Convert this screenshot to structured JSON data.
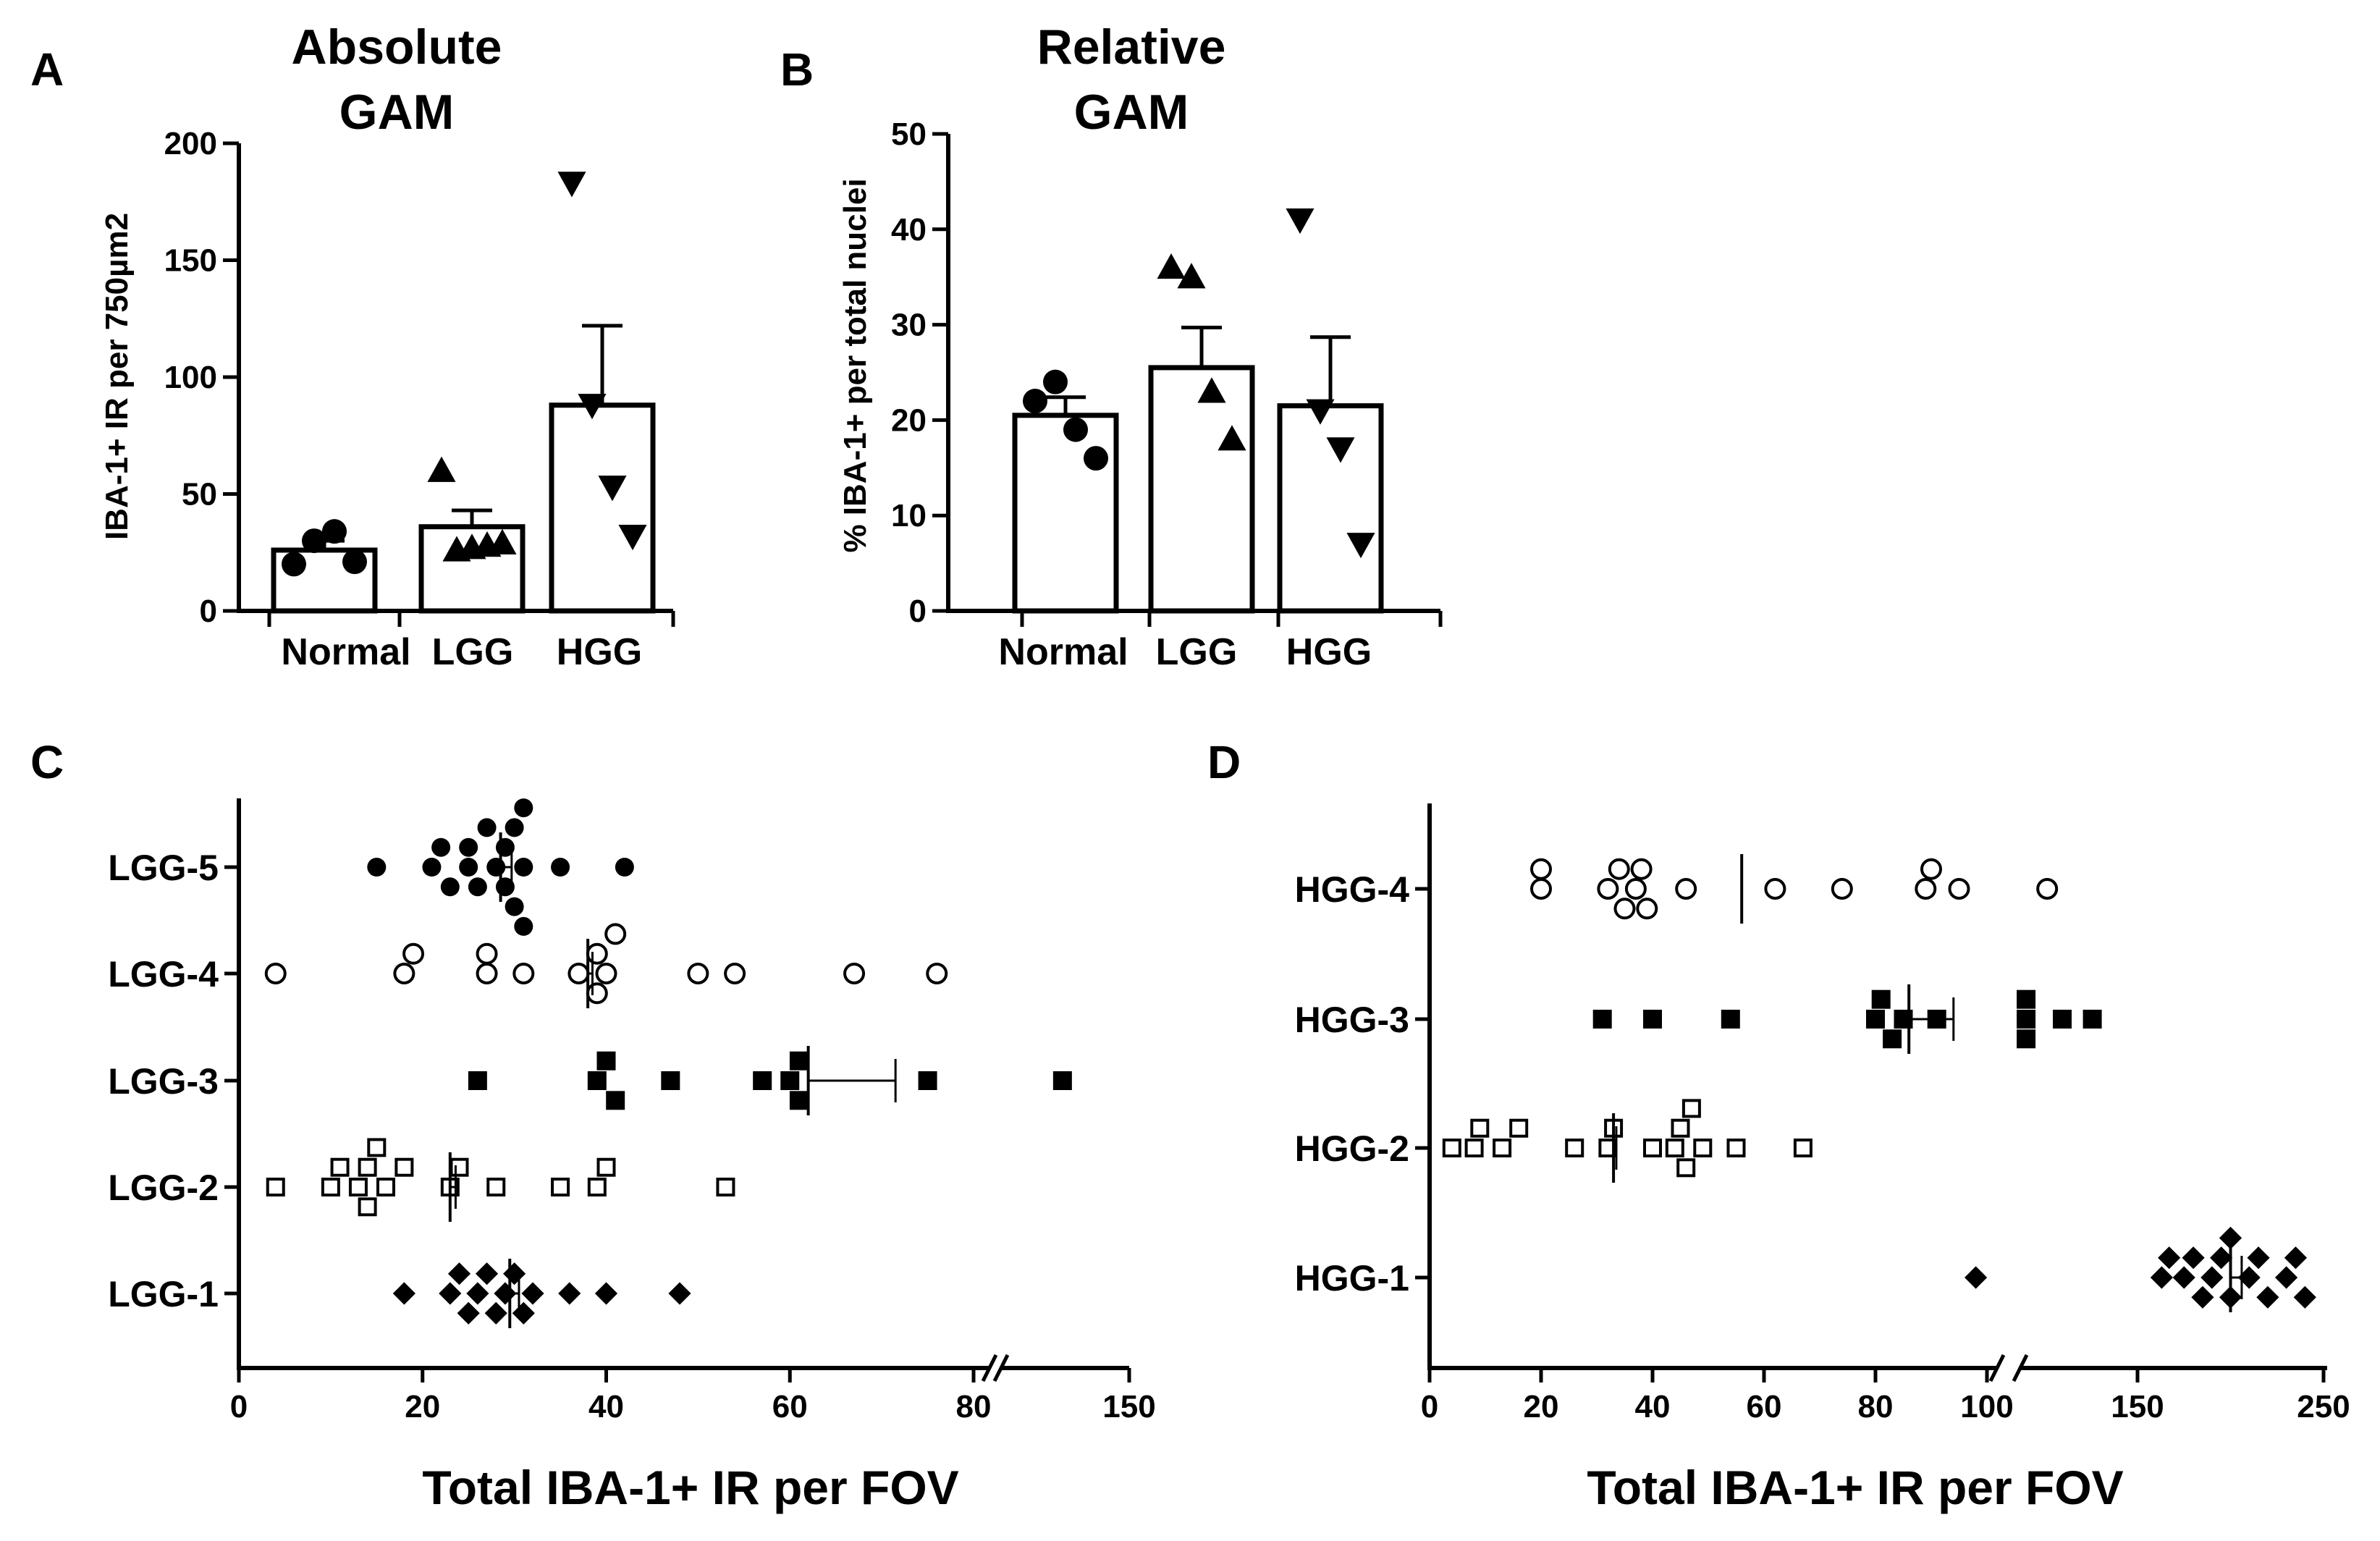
{
  "chart_data": [
    {
      "panel": "A",
      "type": "bar",
      "title": [
        "Absolute",
        "GAM"
      ],
      "ylabel": "IBA-1+ IR per 750µm2",
      "ylim": [
        0,
        200
      ],
      "yticks": [
        0,
        50,
        100,
        150,
        200
      ],
      "categories": [
        "Normal",
        "LGG",
        "HGG"
      ],
      "bars": [
        {
          "category": "Normal",
          "mean": 26,
          "sem": 4,
          "marker": "circle",
          "points": [
            20,
            30,
            34,
            21
          ]
        },
        {
          "category": "LGG",
          "mean": 36,
          "sem": 7,
          "marker": "triangle-up",
          "points": [
            60,
            26,
            27,
            28,
            29
          ]
        },
        {
          "category": "HGG",
          "mean": 88,
          "sem": 34,
          "marker": "triangle-down",
          "points": [
            183,
            88,
            53,
            32
          ]
        }
      ]
    },
    {
      "panel": "B",
      "type": "bar",
      "title": [
        "Relative",
        "GAM"
      ],
      "ylabel": "% IBA-1+ per total nuclei",
      "ylim": [
        0,
        50
      ],
      "yticks": [
        0,
        10,
        20,
        30,
        40,
        50
      ],
      "categories": [
        "Normal",
        "LGG",
        "HGG"
      ],
      "bars": [
        {
          "category": "Normal",
          "mean": 20.5,
          "sem": 1.9,
          "marker": "circle",
          "points": [
            22,
            24,
            19,
            16
          ]
        },
        {
          "category": "LGG",
          "mean": 25.5,
          "sem": 4.2,
          "marker": "triangle-up",
          "points": [
            36,
            35,
            23,
            18
          ]
        },
        {
          "category": "HGG",
          "mean": 21.5,
          "sem": 7.2,
          "marker": "triangle-down",
          "points": [
            41,
            21,
            17,
            7
          ]
        }
      ]
    },
    {
      "panel": "C",
      "type": "scatter",
      "xlabel": "Total IBA-1+ IR per FOV",
      "x_axis_break": true,
      "xticks": [
        0,
        20,
        40,
        60,
        80,
        150
      ],
      "categories": [
        "LGG-5",
        "LGG-4",
        "LGG-3",
        "LGG-2",
        "LGG-1"
      ],
      "series": [
        {
          "name": "LGG-5",
          "marker": "filled-circle",
          "mean": 28.5,
          "sem": 1.2,
          "points": [
            15,
            21,
            22,
            23,
            25,
            25,
            26,
            27,
            28,
            29,
            29,
            30,
            30,
            31,
            31,
            31,
            35,
            42
          ]
        },
        {
          "name": "LGG-4",
          "marker": "open-circle",
          "mean": 38,
          "sem": 0.5,
          "points": [
            4,
            18,
            19,
            27,
            27,
            31,
            37,
            39,
            39,
            40,
            41,
            50,
            54,
            67,
            76
          ]
        },
        {
          "name": "LGG-3",
          "marker": "filled-square",
          "mean": 62,
          "sem": 9.5,
          "points": [
            26,
            39,
            40,
            41,
            47,
            57,
            60,
            61,
            61,
            75,
            120
          ]
        },
        {
          "name": "LGG-2",
          "marker": "open-square",
          "mean": 23,
          "sem": 0.6,
          "points": [
            4,
            10,
            11,
            13,
            14,
            14,
            15,
            16,
            18,
            23,
            24,
            28,
            35,
            39,
            40,
            53
          ]
        },
        {
          "name": "LGG-1",
          "marker": "filled-diamond",
          "mean": 29.5,
          "sem": 1.0,
          "points": [
            18,
            23,
            24,
            25,
            26,
            27,
            28,
            29,
            30,
            31,
            32,
            36,
            40,
            48
          ]
        }
      ]
    },
    {
      "panel": "D",
      "type": "scatter",
      "xlabel": "Total IBA-1+ IR per FOV",
      "x_axis_break": true,
      "xticks": [
        0,
        20,
        40,
        60,
        80,
        100,
        150,
        250
      ],
      "categories": [
        "HGG-4",
        "HGG-3",
        "HGG-2",
        "HGG-1"
      ],
      "series": [
        {
          "name": "HGG-4",
          "marker": "open-circle",
          "mean": 56,
          "sem": 0,
          "points": [
            20,
            20,
            32,
            34,
            35,
            37,
            38,
            39,
            46,
            62,
            74,
            89,
            90,
            95,
            120
          ]
        },
        {
          "name": "HGG-3",
          "marker": "filled-square",
          "mean": 86,
          "sem": 8,
          "points": [
            31,
            40,
            54,
            80,
            81,
            83,
            85,
            91,
            113,
            113,
            113,
            125,
            135
          ]
        },
        {
          "name": "HGG-2",
          "marker": "open-square",
          "mean": 33,
          "sem": 0.5,
          "points": [
            4,
            8,
            9,
            13,
            16,
            26,
            32,
            33,
            40,
            44,
            45,
            46,
            47,
            49,
            55,
            67
          ]
        },
        {
          "name": "HGG-1",
          "marker": "filled-diamond",
          "mean": 200,
          "sem": 6,
          "points": [
            98,
            163,
            167,
            175,
            180,
            185,
            190,
            195,
            200,
            200,
            210,
            215,
            220,
            230,
            235,
            240
          ]
        }
      ]
    }
  ]
}
